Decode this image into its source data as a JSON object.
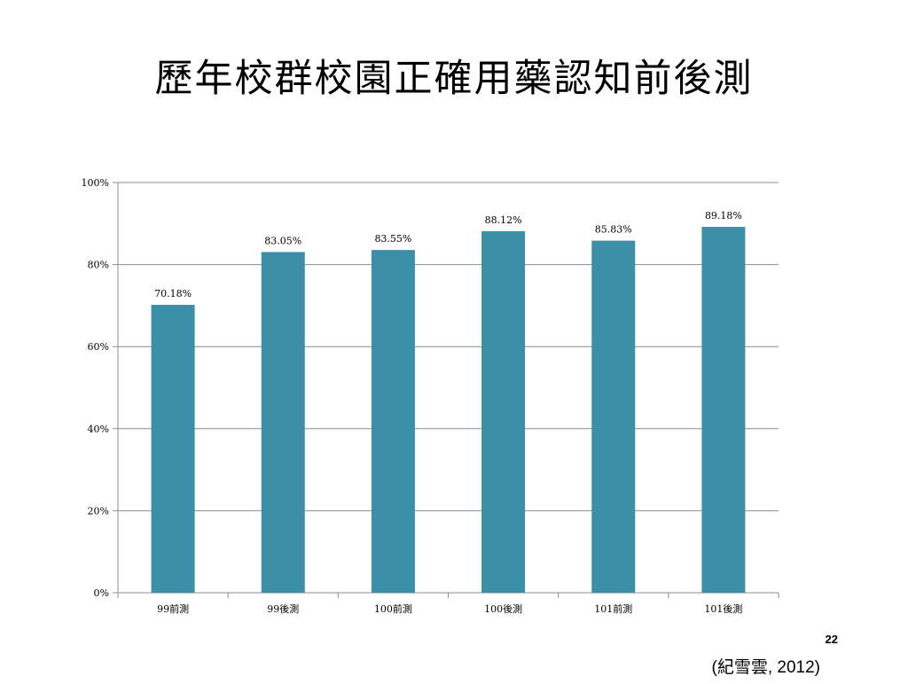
{
  "slide": {
    "title": "歷年校群校園正確用藥認知前後測",
    "page_number": "22",
    "citation": "(紀雪雲, 2012)"
  },
  "colors": {
    "bar": "#3b8fa7",
    "grid": "#8c8c8c",
    "axis": "#8c8c8c",
    "text": "#000000"
  },
  "chart_data": {
    "type": "bar",
    "categories": [
      "99前測",
      "99後測",
      "100前測",
      "100後測",
      "101前測",
      "101後測"
    ],
    "values": [
      70.18,
      83.05,
      83.55,
      88.12,
      85.83,
      89.18
    ],
    "data_labels": [
      "70.18%",
      "83.05%",
      "83.55%",
      "88.12%",
      "85.83%",
      "89.18%"
    ],
    "y_ticks": [
      0,
      20,
      40,
      60,
      80,
      100
    ],
    "y_tick_labels": [
      "0%",
      "20%",
      "40%",
      "60%",
      "80%",
      "100%"
    ],
    "ylim": [
      0,
      100
    ],
    "grid": true,
    "legend": "none"
  }
}
